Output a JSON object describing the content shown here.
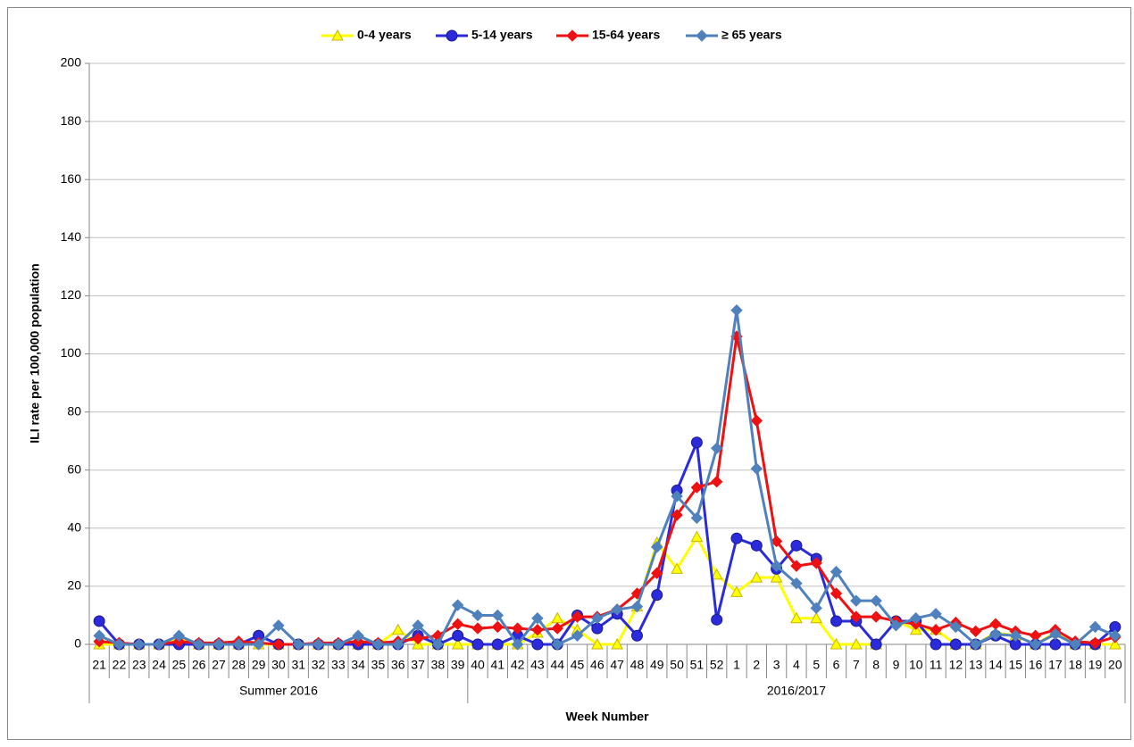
{
  "chart_data": {
    "type": "line",
    "y_label": "ILI rate per 100,000 population",
    "x_label": "Week Number",
    "categories": [
      "21",
      "22",
      "23",
      "24",
      "25",
      "26",
      "27",
      "28",
      "29",
      "30",
      "31",
      "32",
      "33",
      "34",
      "35",
      "36",
      "37",
      "38",
      "39",
      "40",
      "41",
      "42",
      "43",
      "44",
      "45",
      "46",
      "47",
      "48",
      "49",
      "50",
      "51",
      "52",
      "1",
      "2",
      "3",
      "4",
      "5",
      "6",
      "7",
      "8",
      "9",
      "10",
      "11",
      "12",
      "13",
      "14",
      "15",
      "16",
      "17",
      "18",
      "19",
      "20"
    ],
    "groups": [
      {
        "label": "Summer 2016",
        "first": "21",
        "last": "39"
      },
      {
        "label": "2016/2017",
        "first": "40",
        "last": "20"
      }
    ],
    "ylim": [
      0,
      200
    ],
    "yticks": [
      0,
      20,
      40,
      60,
      80,
      100,
      120,
      140,
      160,
      180,
      200
    ],
    "grid": true,
    "legend": "top",
    "series": [
      {
        "name": "0-4 years",
        "color": "#ffff00",
        "marker": "triangle",
        "values": [
          0,
          0,
          0,
          0,
          2,
          0,
          0,
          0,
          0,
          0,
          0,
          0,
          0,
          0,
          0,
          5,
          0,
          0,
          0,
          0,
          0,
          0,
          4,
          9,
          5,
          0,
          0,
          13,
          35,
          26,
          37,
          24,
          18,
          23,
          23,
          9,
          9,
          0,
          0,
          0,
          8,
          5,
          5,
          0,
          0,
          4,
          3,
          0,
          4,
          0,
          0,
          0
        ]
      },
      {
        "name": "5-14 years",
        "color": "#2b2bdc",
        "marker": "circle",
        "values": [
          8,
          0,
          0,
          0,
          0,
          0,
          0,
          0,
          3,
          0,
          0,
          0,
          0,
          0,
          0,
          0,
          3,
          0,
          3,
          0,
          0,
          3,
          0,
          0,
          10,
          5.5,
          10.5,
          3,
          17,
          53,
          69.5,
          8.5,
          36.5,
          34,
          26,
          34,
          29.5,
          8,
          8,
          0,
          8,
          8,
          0,
          0,
          0,
          3,
          0,
          0,
          0,
          0,
          0,
          6
        ]
      },
      {
        "name": "15-64 years",
        "color": "#ee1111",
        "marker": "diamond",
        "values": [
          1,
          0.5,
          0,
          0,
          1,
          0.5,
          0.5,
          1,
          0.5,
          0,
          0,
          0.5,
          0.5,
          1,
          0.5,
          1,
          2,
          3,
          7,
          5.5,
          6,
          5.5,
          5,
          5.5,
          9.5,
          9.5,
          12,
          17.5,
          24.5,
          44.5,
          54,
          56,
          106,
          77,
          35.5,
          27,
          28,
          17.5,
          9.5,
          9.5,
          8,
          7,
          5,
          7.5,
          4.5,
          7,
          4.5,
          3,
          5,
          1,
          0.5,
          2.5
        ]
      },
      {
        "name": "≥ 65 years",
        "color": "#4f81bd",
        "marker": "diamond",
        "values": [
          3,
          0,
          0,
          0,
          3,
          0,
          0,
          0,
          0,
          6.5,
          0,
          0,
          0,
          3,
          0,
          0,
          6.5,
          0,
          13.5,
          10,
          10,
          0,
          9,
          0,
          3,
          9,
          12,
          13,
          33.5,
          51,
          43.5,
          67.5,
          115,
          60.5,
          27,
          21,
          12.5,
          25,
          15,
          15,
          6.5,
          9,
          10.5,
          6,
          0,
          3.5,
          3,
          0,
          3.5,
          0,
          6,
          3
        ]
      }
    ]
  }
}
